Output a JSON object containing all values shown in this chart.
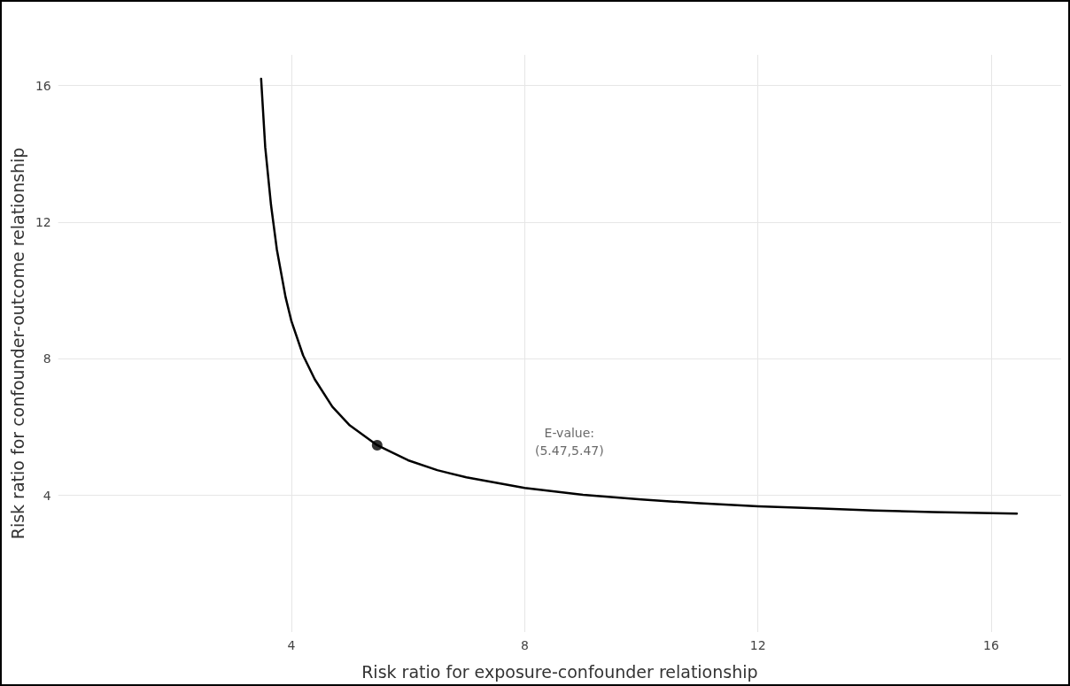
{
  "chart_data": {
    "type": "line",
    "xlabel": "Risk ratio for exposure-confounder relationship",
    "ylabel": "Risk ratio for confounder-outcome relationship",
    "xlim": [
      0,
      17.2
    ],
    "xticks": [
      4,
      8,
      12,
      16
    ],
    "ylim": [
      0,
      16.9
    ],
    "yticks": [
      4,
      8,
      12,
      16
    ],
    "grid": true,
    "series": [
      {
        "color": "#000000",
        "marker": "none",
        "line_style": "solid",
        "x": [
          3.48,
          3.55,
          3.65,
          3.75,
          3.9,
          4.0,
          4.2,
          4.4,
          4.7,
          5.0,
          5.47,
          6,
          6.5,
          7,
          8,
          9,
          10,
          11,
          12,
          13,
          14,
          15,
          16.44
        ],
        "values": [
          16.2,
          14.2,
          12.5,
          11.2,
          9.8,
          9.1,
          8.1,
          7.4,
          6.6,
          6.05,
          5.47,
          5.03,
          4.74,
          4.53,
          4.22,
          4.02,
          3.88,
          3.77,
          3.68,
          3.62,
          3.56,
          3.51,
          3.47
        ]
      },
      {
        "type": "scatter",
        "color": "#000000",
        "marker": "circle",
        "x": [
          5.47
        ],
        "values": [
          5.47
        ]
      }
    ],
    "annotations": [
      "E-value:\n(5.47,5.47)"
    ]
  }
}
